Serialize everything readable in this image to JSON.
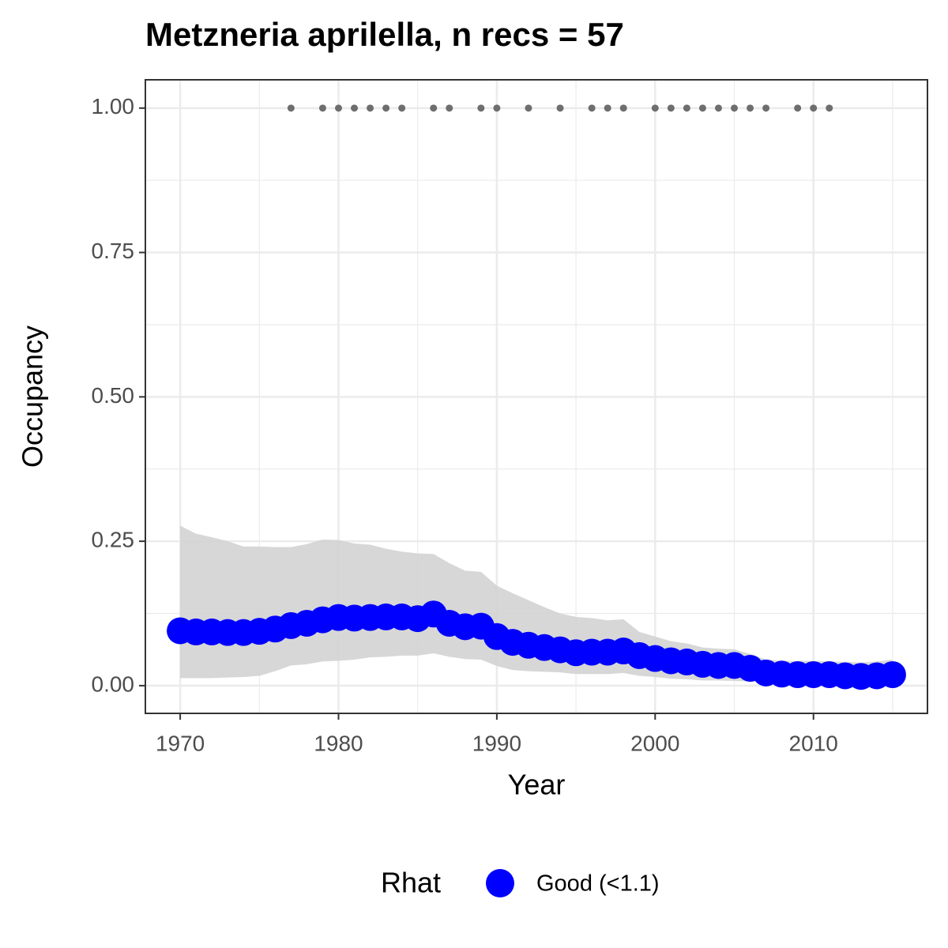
{
  "chart_data": {
    "type": "line",
    "title": "Metzneria aprilella, n recs = 57",
    "x_label": "Year",
    "y_label": "Occupancy",
    "legend_title": "Rhat",
    "x": [
      1970,
      1971,
      1972,
      1973,
      1974,
      1975,
      1976,
      1977,
      1978,
      1979,
      1980,
      1981,
      1982,
      1983,
      1984,
      1985,
      1986,
      1987,
      1988,
      1989,
      1990,
      1991,
      1992,
      1993,
      1994,
      1995,
      1996,
      1997,
      1998,
      1999,
      2000,
      2001,
      2002,
      2003,
      2004,
      2005,
      2006,
      2007,
      2008,
      2009,
      2010,
      2011,
      2012,
      2013,
      2014,
      2015
    ],
    "series": [
      {
        "name": "Good (<1.1)",
        "color": "#0000ff",
        "values": [
          0.095,
          0.093,
          0.093,
          0.092,
          0.092,
          0.094,
          0.098,
          0.104,
          0.108,
          0.114,
          0.118,
          0.117,
          0.118,
          0.119,
          0.119,
          0.116,
          0.124,
          0.108,
          0.102,
          0.103,
          0.085,
          0.075,
          0.07,
          0.066,
          0.062,
          0.057,
          0.058,
          0.058,
          0.06,
          0.052,
          0.047,
          0.043,
          0.041,
          0.037,
          0.035,
          0.035,
          0.03,
          0.022,
          0.02,
          0.019,
          0.019,
          0.019,
          0.017,
          0.016,
          0.017,
          0.019
        ]
      }
    ],
    "band": {
      "color": "#d3d3d3",
      "upper": [
        0.277,
        0.263,
        0.257,
        0.25,
        0.241,
        0.241,
        0.24,
        0.24,
        0.245,
        0.253,
        0.252,
        0.246,
        0.244,
        0.237,
        0.232,
        0.229,
        0.228,
        0.212,
        0.199,
        0.197,
        0.173,
        0.16,
        0.148,
        0.136,
        0.125,
        0.119,
        0.117,
        0.113,
        0.115,
        0.093,
        0.085,
        0.077,
        0.073,
        0.066,
        0.064,
        0.063,
        0.055,
        0.045,
        0.043,
        0.043,
        0.043,
        0.042,
        0.041,
        0.04,
        0.042,
        0.045
      ],
      "lower": [
        0.013,
        0.013,
        0.013,
        0.014,
        0.015,
        0.017,
        0.025,
        0.035,
        0.037,
        0.042,
        0.043,
        0.045,
        0.049,
        0.05,
        0.052,
        0.052,
        0.056,
        0.05,
        0.046,
        0.045,
        0.034,
        0.027,
        0.025,
        0.024,
        0.023,
        0.02,
        0.02,
        0.02,
        0.022,
        0.017,
        0.015,
        0.012,
        0.011,
        0.009,
        0.009,
        0.008,
        0.007,
        0.005,
        0.004,
        0.004,
        0.004,
        0.004,
        0.004,
        0.004,
        0.004,
        0.004
      ]
    },
    "records": {
      "color": "#6e6e6e",
      "x": [
        1977,
        1979,
        1980,
        1981,
        1982,
        1983,
        1984,
        1986,
        1987,
        1989,
        1990,
        1992,
        1994,
        1996,
        1997,
        1998,
        2000,
        2001,
        2002,
        2003,
        2004,
        2005,
        2006,
        2007,
        2009,
        2010,
        2011
      ],
      "values": [
        1,
        1,
        1,
        1,
        1,
        1,
        1,
        1,
        1,
        1,
        1,
        1,
        1,
        1,
        1,
        1,
        1,
        1,
        1,
        1,
        1,
        1,
        1,
        1,
        1,
        1,
        1
      ]
    },
    "xlim": [
      1967.8,
      2017.2
    ],
    "ylim": [
      -0.048,
      1.049
    ],
    "xticks": [
      1970,
      1980,
      1990,
      2000,
      2010
    ],
    "yticks": [
      {
        "value": 0,
        "label": "0.00"
      },
      {
        "value": 0.25,
        "label": "0.25"
      },
      {
        "value": 0.5,
        "label": "0.50"
      },
      {
        "value": 0.75,
        "label": "0.75"
      },
      {
        "value": 1,
        "label": "1.00"
      }
    ],
    "x_minor_ticks": [
      1975,
      1985,
      1995,
      2005,
      2015
    ],
    "y_minor_ticks": [
      0.125,
      0.375,
      0.625,
      0.875
    ],
    "grid": true,
    "legend_position": "bottom"
  }
}
